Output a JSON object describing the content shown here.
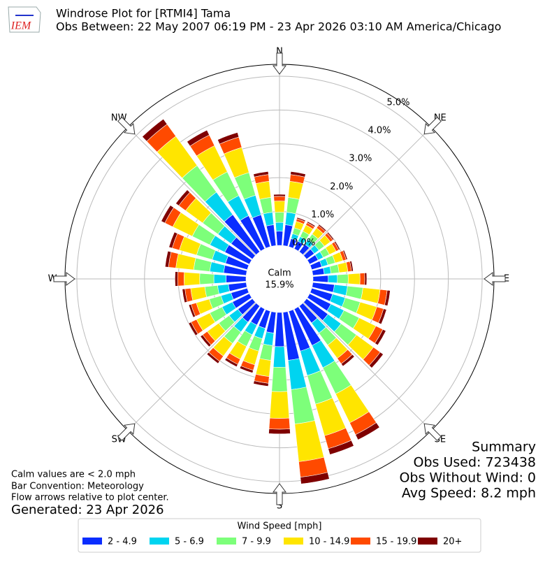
{
  "chart_data": {
    "type": "windrose",
    "title": "Windrose Plot for [RTMI4] Tama",
    "subtitle": "Obs Between: 22 May 2007 06:19 PM - 23 Apr 2026 03:10 AM America/Chicago",
    "logo_text": "IEM",
    "direction_labels": [
      "N",
      "NE",
      "E",
      "SE",
      "S",
      "SW",
      "W",
      "NW"
    ],
    "calm_label": "Calm",
    "calm_value": "15.9%",
    "legend_title": "Wind Speed [mph]",
    "categories": [
      null,
      null,
      null,
      null,
      null,
      null,
      null,
      null,
      null,
      null,
      null,
      null,
      null,
      null,
      null,
      null,
      null,
      null,
      null,
      null,
      null,
      null,
      null,
      null,
      null,
      null,
      null,
      null,
      null,
      null,
      null,
      null,
      null,
      null,
      null,
      null
    ],
    "rlim": [
      0,
      5.35
    ],
    "rticks": [
      {
        "value": 0,
        "label": "0.0%"
      },
      {
        "value": 1,
        "label": "1.0%"
      },
      {
        "value": 2,
        "label": "2.0%"
      },
      {
        "value": 3,
        "label": "3.0%"
      },
      {
        "value": 4,
        "label": "4.0%"
      },
      {
        "value": 5,
        "label": "5.0%"
      }
    ],
    "grid": true,
    "series": [
      {
        "name": "2 - 4.9",
        "color": "#0a2dff",
        "values": [
          0.42,
          0.62,
          0.25,
          0.25,
          0.28,
          0.28,
          0.28,
          0.31,
          0.34,
          0.45,
          0.64,
          0.64,
          0.7,
          0.78,
          0.62,
          1.2,
          1.23,
          1.43,
          1.01,
          0.62,
          0.53,
          0.53,
          0.59,
          0.53,
          0.56,
          0.5,
          0.53,
          0.59,
          0.67,
          0.67,
          0.81,
          0.78,
          1.36,
          1.09,
          0.98,
          0.62
        ]
      },
      {
        "name": "5 - 6.9",
        "color": "#00d4f0",
        "values": [
          0.26,
          0.37,
          0.15,
          0.15,
          0.17,
          0.17,
          0.17,
          0.19,
          0.2,
          0.27,
          0.39,
          0.39,
          0.43,
          0.48,
          0.37,
          0.73,
          0.75,
          0.87,
          0.61,
          0.37,
          0.32,
          0.32,
          0.36,
          0.32,
          0.34,
          0.31,
          0.32,
          0.36,
          0.41,
          0.41,
          0.49,
          0.48,
          0.82,
          0.66,
          0.6,
          0.37
        ]
      },
      {
        "name": "7 - 9.9",
        "color": "#7dff7a",
        "values": [
          0.3,
          0.44,
          0.18,
          0.18,
          0.2,
          0.2,
          0.2,
          0.22,
          0.24,
          0.32,
          0.46,
          0.46,
          0.5,
          0.56,
          0.44,
          0.86,
          0.88,
          1.02,
          0.72,
          0.44,
          0.38,
          0.38,
          0.42,
          0.38,
          0.4,
          0.36,
          0.38,
          0.42,
          0.48,
          0.48,
          0.58,
          0.56,
          0.97,
          0.78,
          0.7,
          0.44
        ]
      },
      {
        "name": "10 - 14.9",
        "color": "#ffe500",
        "values": [
          0.33,
          0.48,
          0.2,
          0.2,
          0.22,
          0.22,
          0.22,
          0.24,
          0.26,
          0.35,
          0.51,
          0.51,
          0.55,
          0.62,
          0.48,
          0.95,
          0.97,
          1.12,
          0.79,
          0.48,
          0.42,
          0.42,
          0.46,
          0.42,
          0.44,
          0.4,
          0.42,
          0.46,
          0.53,
          0.53,
          0.64,
          0.62,
          1.07,
          0.86,
          0.77,
          0.48
        ]
      },
      {
        "name": "15 - 19.9",
        "color": "#ff4a00",
        "values": [
          0.14,
          0.2,
          0.08,
          0.08,
          0.09,
          0.09,
          0.09,
          0.1,
          0.11,
          0.14,
          0.21,
          0.21,
          0.23,
          0.25,
          0.2,
          0.39,
          0.4,
          0.46,
          0.32,
          0.2,
          0.17,
          0.17,
          0.19,
          0.17,
          0.18,
          0.16,
          0.17,
          0.19,
          0.22,
          0.22,
          0.26,
          0.25,
          0.44,
          0.35,
          0.32,
          0.2
        ]
      },
      {
        "name": "20+",
        "color": "#7f0000",
        "values": [
          0.06,
          0.09,
          0.04,
          0.04,
          0.04,
          0.04,
          0.04,
          0.04,
          0.05,
          0.06,
          0.09,
          0.09,
          0.1,
          0.11,
          0.09,
          0.17,
          0.18,
          0.2,
          0.14,
          0.09,
          0.08,
          0.08,
          0.08,
          0.08,
          0.08,
          0.07,
          0.08,
          0.08,
          0.1,
          0.1,
          0.12,
          0.11,
          0.19,
          0.16,
          0.14,
          0.09
        ]
      }
    ],
    "summary": [
      "Summary",
      "Obs Used: 723438",
      "Obs Without Wind: 0",
      "Avg Speed: 8.2 mph"
    ],
    "notes": [
      "Calm values are < 2.0 mph",
      "Bar Convention: Meteorology",
      "Flow arrows relative to plot center."
    ],
    "generated": "Generated: 23 Apr 2026"
  }
}
